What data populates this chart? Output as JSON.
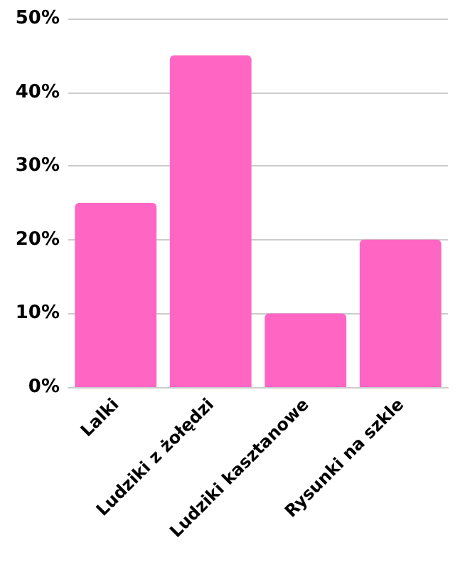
{
  "chart_data": {
    "type": "bar",
    "categories": [
      "Lalki",
      "Ludziki z żołędzi",
      "Ludziki kasztanowe",
      "Rysunki na szkle"
    ],
    "values": [
      25,
      45,
      10,
      20
    ],
    "color": "#ff66c4",
    "ylim": [
      0,
      50
    ],
    "yticks": [
      {
        "value": 0,
        "label": "0%"
      },
      {
        "value": 10,
        "label": "10%"
      },
      {
        "value": 20,
        "label": "20%"
      },
      {
        "value": 30,
        "label": "30%"
      },
      {
        "value": 40,
        "label": "40%"
      },
      {
        "value": 50,
        "label": "50%"
      }
    ],
    "grid": "y"
  }
}
